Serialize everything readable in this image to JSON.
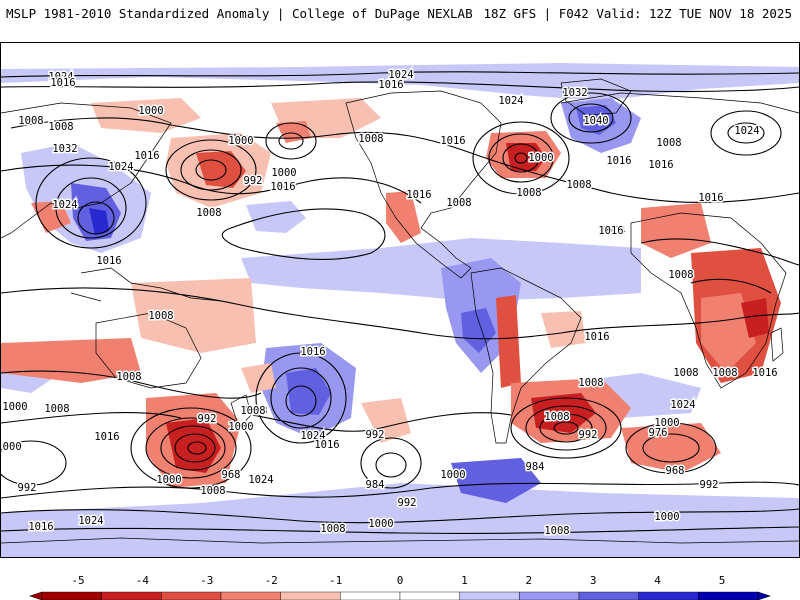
{
  "header": {
    "left": "MSLP 1981-2010 Standardized Anomaly | College of DuPage NEXLAB",
    "right": "18Z GFS | F042 Valid: 12Z TUE NOV 18 2025"
  },
  "colors": {
    "neg5": "#a00000",
    "neg4": "#c82020",
    "neg3": "#e05040",
    "neg2": "#f08070",
    "neg1": "#f8c0b0",
    "zero": "#ffffff",
    "pos1": "#c8c8f8",
    "pos2": "#9898f0",
    "pos3": "#6060e0",
    "pos4": "#2828d0",
    "pos5": "#0000b0",
    "contour": "#000000",
    "coast": "#000000"
  },
  "colorbar": {
    "ticks": [
      "-5",
      "-4",
      "-3",
      "-2",
      "-1",
      "0",
      "1",
      "2",
      "3",
      "4",
      "5"
    ]
  },
  "isobar_labels": [
    {
      "text": "1024"
    },
    {
      "text": "1016"
    },
    {
      "text": "1016"
    },
    {
      "text": "1024"
    },
    {
      "text": "1024"
    },
    {
      "text": "1032"
    },
    {
      "text": "1040"
    },
    {
      "text": "1000"
    },
    {
      "text": "1008"
    },
    {
      "text": "1008"
    },
    {
      "text": "1000"
    },
    {
      "text": "1008"
    },
    {
      "text": "1032"
    },
    {
      "text": "1016"
    },
    {
      "text": "1024"
    },
    {
      "text": "1000"
    },
    {
      "text": "992"
    },
    {
      "text": "1016"
    },
    {
      "text": "1024"
    },
    {
      "text": "1008"
    },
    {
      "text": "1016"
    },
    {
      "text": "1016"
    },
    {
      "text": "1008"
    },
    {
      "text": "1000"
    },
    {
      "text": "1008"
    },
    {
      "text": "1016"
    },
    {
      "text": "1016"
    },
    {
      "text": "1008"
    },
    {
      "text": "1024"
    },
    {
      "text": "1016"
    },
    {
      "text": "1016"
    },
    {
      "text": "1024"
    },
    {
      "text": "1008"
    },
    {
      "text": "1008"
    },
    {
      "text": "1008"
    },
    {
      "text": "1008"
    },
    {
      "text": "1016"
    },
    {
      "text": "1016"
    },
    {
      "text": "1008"
    },
    {
      "text": "1016"
    },
    {
      "text": "1008"
    },
    {
      "text": "1000"
    },
    {
      "text": "1008"
    },
    {
      "text": "1016"
    },
    {
      "text": "1024"
    },
    {
      "text": "1008"
    },
    {
      "text": "992"
    },
    {
      "text": "1000"
    },
    {
      "text": "1008"
    },
    {
      "text": "1024"
    },
    {
      "text": "1016"
    },
    {
      "text": "992"
    },
    {
      "text": "968"
    },
    {
      "text": "1000"
    },
    {
      "text": "1008"
    },
    {
      "text": "1016"
    },
    {
      "text": "1024"
    },
    {
      "text": "984"
    },
    {
      "text": "992"
    },
    {
      "text": "1008"
    },
    {
      "text": "1000"
    },
    {
      "text": "984"
    },
    {
      "text": "992"
    },
    {
      "text": "976"
    },
    {
      "text": "1000"
    },
    {
      "text": "968"
    },
    {
      "text": "992"
    },
    {
      "text": "1000"
    },
    {
      "text": "1008"
    },
    {
      "text": "1000"
    },
    {
      "text": "1008"
    },
    {
      "text": "1000"
    },
    {
      "text": "992"
    },
    {
      "text": "1016"
    },
    {
      "text": "1024"
    },
    {
      "text": "1008"
    }
  ]
}
